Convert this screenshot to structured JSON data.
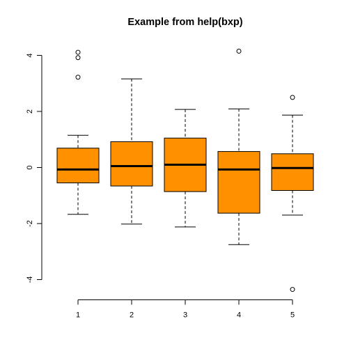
{
  "chart_data": {
    "type": "boxplot",
    "title": "Example from help(bxp)",
    "xlabel": "",
    "ylabel": "",
    "categories": [
      "1",
      "2",
      "3",
      "4",
      "5"
    ],
    "ylim": [
      -4.7,
      4.4
    ],
    "y_ticks": [
      -4,
      -2,
      0,
      2,
      4
    ],
    "y_tick_labels": [
      "-4",
      "-2",
      "0",
      "2",
      "4"
    ],
    "grid": false,
    "box_fill": "#ff9000",
    "boxes": [
      {
        "name": "1",
        "whisker_low": -1.67,
        "q1": -0.55,
        "median": -0.07,
        "q3": 0.69,
        "whisker_high": 1.15,
        "outliers": [
          3.22,
          3.92,
          4.11
        ]
      },
      {
        "name": "2",
        "whisker_low": -2.02,
        "q1": -0.66,
        "median": 0.05,
        "q3": 0.92,
        "whisker_high": 3.16,
        "outliers": []
      },
      {
        "name": "3",
        "whisker_low": -2.12,
        "q1": -0.86,
        "median": 0.1,
        "q3": 1.05,
        "whisker_high": 2.07,
        "outliers": []
      },
      {
        "name": "4",
        "whisker_low": -2.75,
        "q1": -1.63,
        "median": -0.07,
        "q3": 0.57,
        "whisker_high": 2.09,
        "outliers": [
          4.15
        ]
      },
      {
        "name": "5",
        "whisker_low": -1.7,
        "q1": -0.82,
        "median": -0.02,
        "q3": 0.49,
        "whisker_high": 1.87,
        "outliers": [
          2.5,
          -4.35
        ]
      }
    ]
  }
}
